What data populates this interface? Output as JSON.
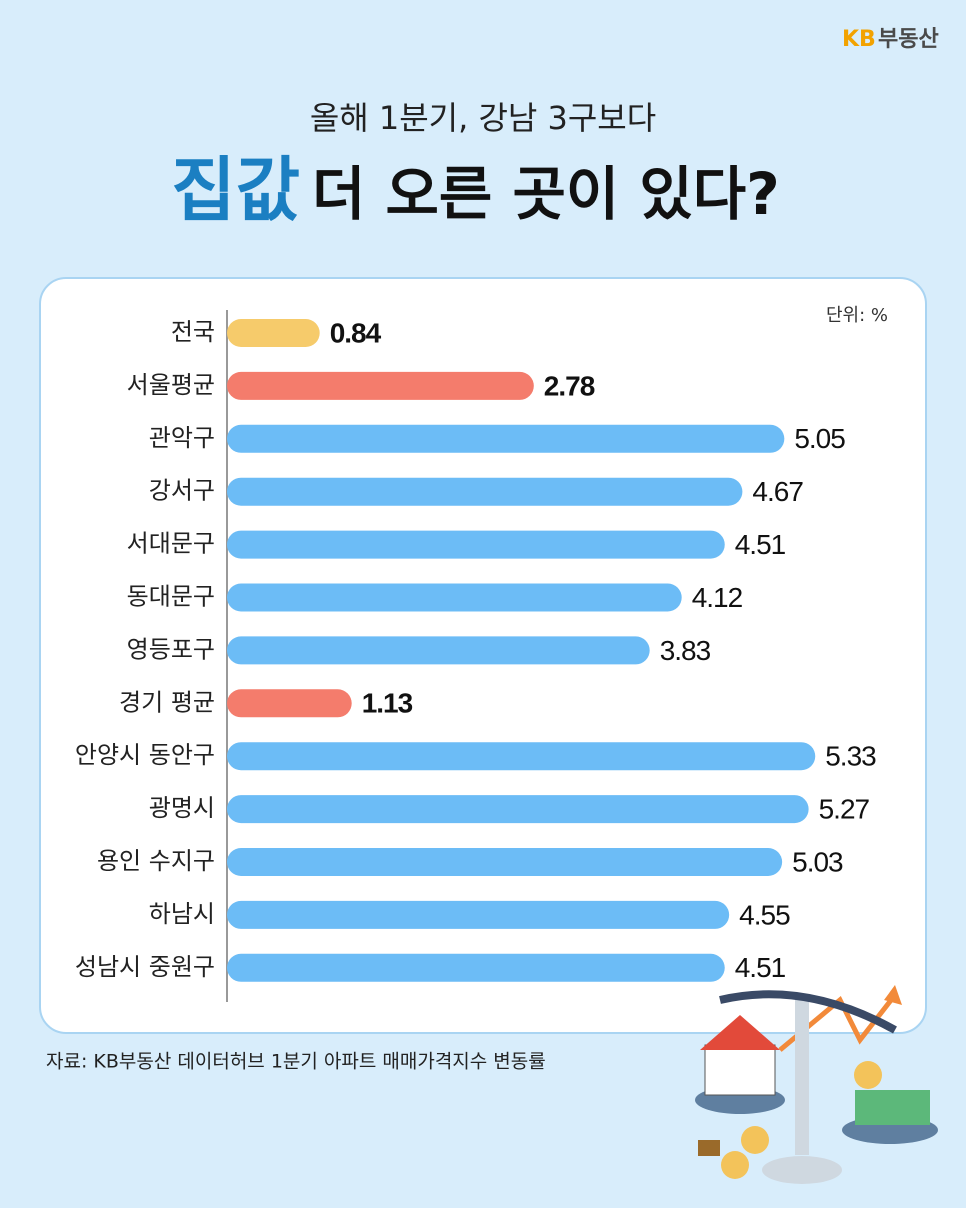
{
  "brand": {
    "mark": "KB",
    "name": "부동산"
  },
  "subtitle": "올해 1분기, 강남 3구보다",
  "title": {
    "highlight": "집값",
    "rest": "더 오른 곳이 있다?"
  },
  "source": "자료: KB부동산 데이터허브 1분기 아파트 매매가격지수 변동률",
  "chart_data": {
    "type": "bar",
    "orientation": "horizontal",
    "unit_label": "단위: %",
    "categories": [
      "전국",
      "서울평균",
      "관악구",
      "강서구",
      "서대문구",
      "동대문구",
      "영등포구",
      "경기 평균",
      "안양시 동안구",
      "광명시",
      "용인 수지구",
      "하남시",
      "성남시 중원구"
    ],
    "values": [
      0.84,
      2.78,
      5.05,
      4.67,
      4.51,
      4.12,
      3.83,
      1.13,
      5.33,
      5.27,
      5.03,
      4.55,
      4.51
    ],
    "colors": [
      "#f6cb6b",
      "#f47c6c",
      "#6cbcf6",
      "#6cbcf6",
      "#6cbcf6",
      "#6cbcf6",
      "#6cbcf6",
      "#f47c6c",
      "#6cbcf6",
      "#6cbcf6",
      "#6cbcf6",
      "#6cbcf6",
      "#6cbcf6"
    ],
    "xlim": [
      0,
      5.5
    ]
  }
}
